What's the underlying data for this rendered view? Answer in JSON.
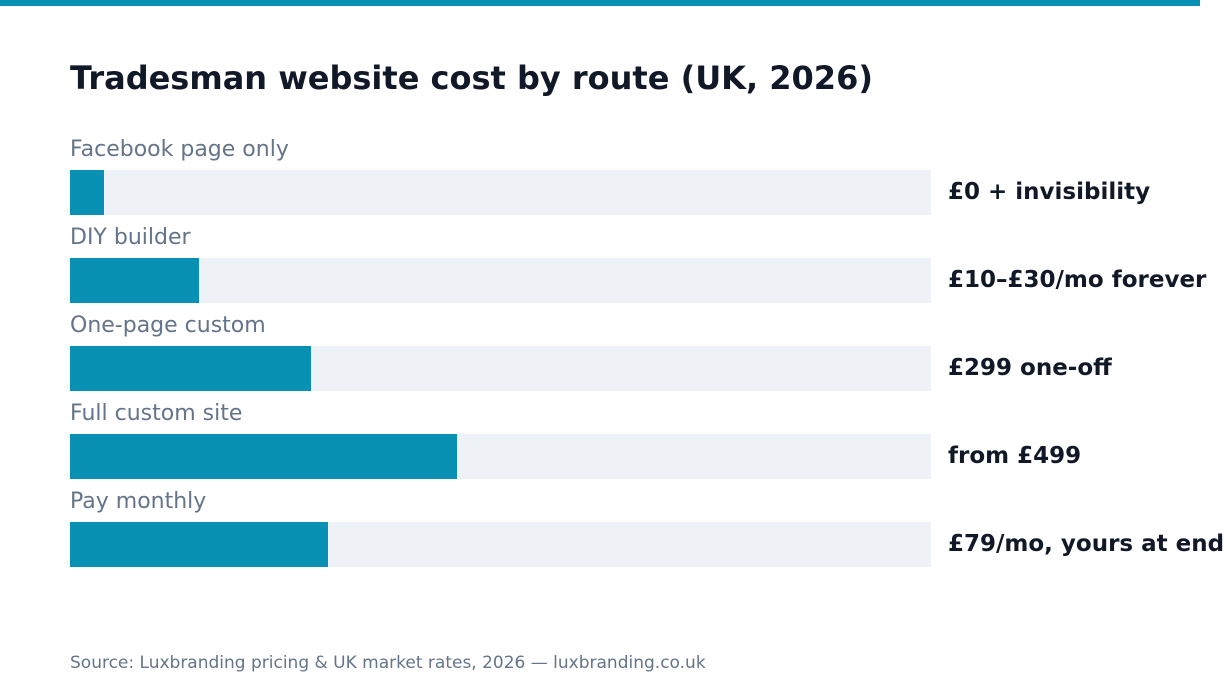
{
  "colors": {
    "accent": "#0891b2",
    "track": "#eef2f6",
    "title": "#111827",
    "muted": "#64748b"
  },
  "chart_data": {
    "type": "bar",
    "orientation": "horizontal",
    "title": "Tradesman website cost by route (UK, 2026)",
    "xlabel": "",
    "ylabel": "",
    "grid": false,
    "legend": "none",
    "scale_max": 100,
    "categories": [
      "Facebook page only",
      "DIY builder",
      "One-page custom",
      "Full custom site",
      "Pay monthly"
    ],
    "values": [
      4,
      15,
      28,
      45,
      30
    ],
    "value_labels": [
      "£0 + invisibility",
      "£10–£30/mo forever",
      "£299 one-off",
      "from £499",
      "£79/mo, yours at end"
    ],
    "source": "Source: Luxbranding pricing & UK market rates, 2026 — luxbranding.co.uk"
  }
}
